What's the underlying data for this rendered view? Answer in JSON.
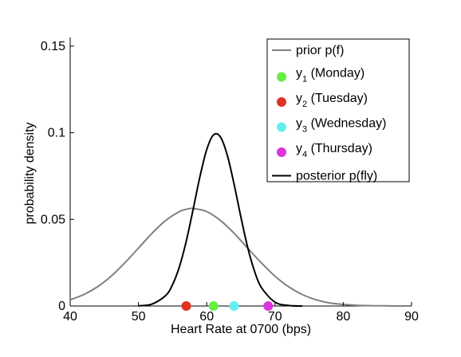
{
  "chart_data": {
    "type": "line",
    "xlabel": "Heart Rate at 0700 (bps)",
    "ylabel": "probability density",
    "xlim": [
      40,
      90
    ],
    "ylim": [
      0,
      0.155
    ],
    "xticks": [
      "40",
      "50",
      "60",
      "70",
      "80",
      "90"
    ],
    "yticks": [
      "0",
      "0.05",
      "0.1",
      "0.15"
    ],
    "grid": false,
    "legend_position": "top-right",
    "series": [
      {
        "name": "prior p(f)",
        "kind": "line",
        "color": "#808080",
        "x": [
          40,
          42,
          44,
          46,
          48,
          50,
          52,
          54,
          56,
          57,
          58,
          60,
          62,
          64,
          66,
          68,
          70,
          72,
          74,
          76,
          78,
          80,
          82,
          84,
          86,
          88,
          90
        ],
        "y": [
          0.0036,
          0.0066,
          0.0111,
          0.0172,
          0.0249,
          0.0334,
          0.042,
          0.0494,
          0.0545,
          0.0558,
          0.0563,
          0.0545,
          0.0494,
          0.042,
          0.0334,
          0.0249,
          0.0172,
          0.0111,
          0.0066,
          0.0036,
          0.0018,
          0.0009,
          0.0004,
          0.0002,
          0.0001,
          0.0,
          0.0
        ]
      },
      {
        "name": "posterior p(fly)",
        "kind": "line",
        "color": "#000000",
        "x": [
          50,
          52,
          54,
          55,
          56,
          57,
          58,
          59,
          60,
          61,
          62,
          63,
          64,
          65,
          66,
          67,
          68,
          70,
          72,
          74
        ],
        "y": [
          0.0001,
          0.0011,
          0.0061,
          0.0124,
          0.0227,
          0.0374,
          0.0556,
          0.0746,
          0.0903,
          0.0988,
          0.0976,
          0.0872,
          0.0704,
          0.0514,
          0.0338,
          0.0201,
          0.0107,
          0.0022,
          0.0003,
          0.0
        ]
      },
      {
        "name": "y_1 (Monday)",
        "kind": "point",
        "color": "#66ee44",
        "x": [
          61
        ],
        "y": [
          0
        ]
      },
      {
        "name": "y_2 (Tuesday)",
        "kind": "point",
        "color": "#dd3322",
        "x": [
          57
        ],
        "y": [
          0
        ]
      },
      {
        "name": "y_3 (Wednesday)",
        "kind": "point",
        "color": "#66eeee",
        "x": [
          64
        ],
        "y": [
          0
        ]
      },
      {
        "name": "y_4 (Thursday)",
        "kind": "point",
        "color": "#dd33dd",
        "x": [
          69
        ],
        "y": [
          0
        ]
      }
    ],
    "legend": [
      {
        "kind": "line",
        "color": "#808080",
        "label": "prior p(f)"
      },
      {
        "kind": "point",
        "color": "#66ee44",
        "main": "y",
        "sub": "1",
        "rest": " (Monday)"
      },
      {
        "kind": "point",
        "color": "#dd3322",
        "main": "y",
        "sub": "2",
        "rest": " (Tuesday)"
      },
      {
        "kind": "point",
        "color": "#66eeee",
        "main": "y",
        "sub": "3",
        "rest": " (Wednesday)"
      },
      {
        "kind": "point",
        "color": "#dd33dd",
        "main": "y",
        "sub": "4",
        "rest": " (Thursday)"
      },
      {
        "kind": "line",
        "color": "#000000",
        "label": "posterior p(fly)"
      }
    ]
  }
}
